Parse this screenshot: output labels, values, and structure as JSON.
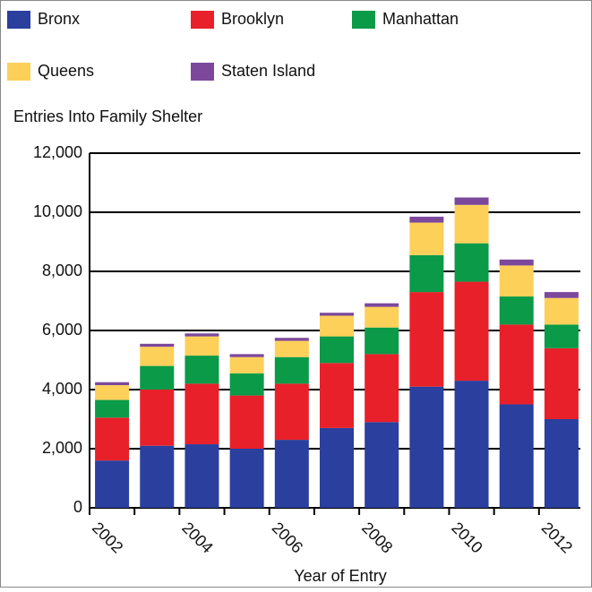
{
  "chart_data": {
    "type": "stacked_bar",
    "y_axis_title": "Entries Into Family Shelter",
    "x_axis_title": "Year of Entry",
    "categories": [
      "2002",
      null,
      "2004",
      null,
      "2006",
      null,
      "2008",
      null,
      "2010",
      null,
      "2012"
    ],
    "series": [
      {
        "name": "Bronx",
        "color": "#2a3f9e",
        "values": [
          1600,
          2100,
          2150,
          2000,
          2300,
          2700,
          2900,
          4100,
          4300,
          3500,
          3000
        ]
      },
      {
        "name": "Brooklyn",
        "color": "#e8202a",
        "values": [
          1450,
          1900,
          2050,
          1800,
          1900,
          2200,
          2300,
          3200,
          3350,
          2700,
          2400
        ]
      },
      {
        "name": "Manhattan",
        "color": "#0a9a48",
        "values": [
          600,
          800,
          950,
          750,
          900,
          900,
          900,
          1250,
          1300,
          950,
          800
        ]
      },
      {
        "name": "Queens",
        "color": "#fdd05a",
        "values": [
          500,
          650,
          650,
          550,
          550,
          700,
          700,
          1100,
          1300,
          1050,
          900
        ]
      },
      {
        "name": "Staten Island",
        "color": "#7c489c",
        "values": [
          100,
          100,
          100,
          100,
          100,
          100,
          120,
          200,
          250,
          200,
          200
        ]
      }
    ],
    "ylim": [
      0,
      12000
    ],
    "yticks": [
      0,
      {
        "value": 2000,
        "label": "2,000"
      },
      {
        "value": 4000,
        "label": "4,000"
      },
      {
        "value": 6000,
        "label": "6,000"
      },
      {
        "value": 8000,
        "label": "8,000"
      },
      {
        "value": 10000,
        "label": "10,000"
      },
      {
        "value": 12000,
        "label": "12,000"
      }
    ],
    "grid": true
  }
}
